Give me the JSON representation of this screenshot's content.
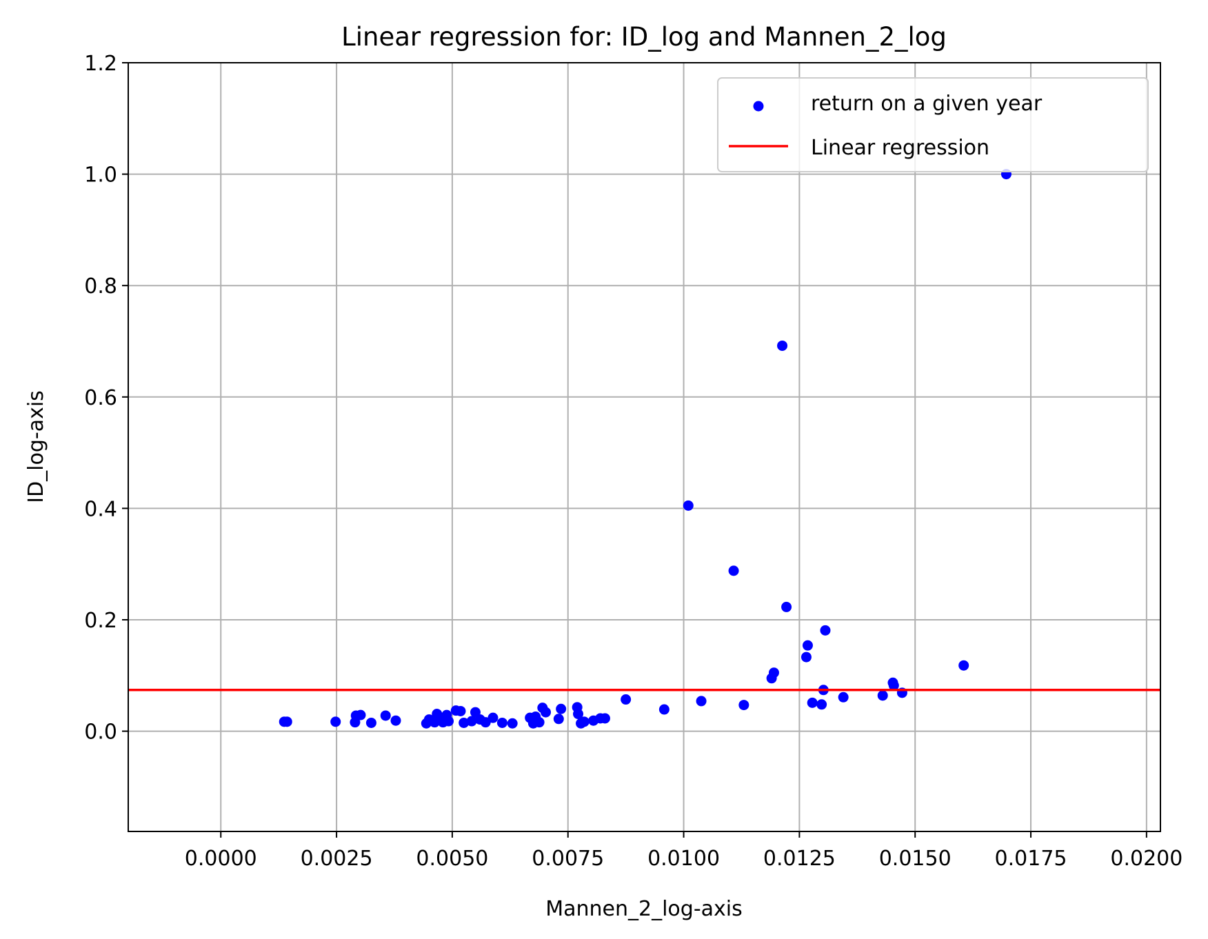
{
  "chart_data": {
    "type": "scatter",
    "title": "Linear regression for: ID_log and Mannen_2_log",
    "xlabel": "Mannen_2_log-axis",
    "ylabel": "ID_log-axis",
    "xlim": [
      -0.002,
      0.0203
    ],
    "ylim": [
      -0.18,
      1.2
    ],
    "x_ticks": [
      "0.0000",
      "0.0025",
      "0.0050",
      "0.0075",
      "0.0100",
      "0.0125",
      "0.0150",
      "0.0175",
      "0.0200"
    ],
    "x_tick_values": [
      0.0,
      0.0025,
      0.005,
      0.0075,
      0.01,
      0.0125,
      0.015,
      0.0175,
      0.02
    ],
    "y_ticks": [
      "0.0",
      "0.2",
      "0.4",
      "0.6",
      "0.8",
      "1.0",
      "1.2"
    ],
    "y_tick_values": [
      0.0,
      0.2,
      0.4,
      0.6,
      0.8,
      1.0,
      1.2
    ],
    "grid": true,
    "legend_position": "top-right",
    "colors": {
      "points": "#0000ff",
      "regression": "#ff0000",
      "grid": "#b0b0b0"
    },
    "series": [
      {
        "name": "return on a given year",
        "kind": "scatter",
        "points": [
          [
            0.00137,
            0.017
          ],
          [
            0.00143,
            0.017
          ],
          [
            0.00248,
            0.017
          ],
          [
            0.0029,
            0.016
          ],
          [
            0.00292,
            0.028
          ],
          [
            0.00302,
            0.029
          ],
          [
            0.00325,
            0.015
          ],
          [
            0.00356,
            0.028
          ],
          [
            0.00378,
            0.019
          ],
          [
            0.00444,
            0.014
          ],
          [
            0.0045,
            0.021
          ],
          [
            0.00462,
            0.016
          ],
          [
            0.00467,
            0.031
          ],
          [
            0.00475,
            0.02
          ],
          [
            0.0048,
            0.016
          ],
          [
            0.00488,
            0.029
          ],
          [
            0.00492,
            0.018
          ],
          [
            0.00508,
            0.037
          ],
          [
            0.00518,
            0.036
          ],
          [
            0.00525,
            0.015
          ],
          [
            0.00542,
            0.018
          ],
          [
            0.0055,
            0.034
          ],
          [
            0.0056,
            0.021
          ],
          [
            0.00572,
            0.016
          ],
          [
            0.00588,
            0.024
          ],
          [
            0.00608,
            0.015
          ],
          [
            0.0063,
            0.014
          ],
          [
            0.00668,
            0.024
          ],
          [
            0.00675,
            0.014
          ],
          [
            0.0068,
            0.026
          ],
          [
            0.00688,
            0.016
          ],
          [
            0.00695,
            0.042
          ],
          [
            0.00702,
            0.034
          ],
          [
            0.0073,
            0.022
          ],
          [
            0.00735,
            0.04
          ],
          [
            0.0077,
            0.043
          ],
          [
            0.00772,
            0.031
          ],
          [
            0.00778,
            0.014
          ],
          [
            0.00785,
            0.017
          ],
          [
            0.00805,
            0.019
          ],
          [
            0.0082,
            0.023
          ],
          [
            0.0083,
            0.023
          ],
          [
            0.00875,
            0.057
          ],
          [
            0.00958,
            0.039
          ],
          [
            0.0101,
            0.405
          ],
          [
            0.01038,
            0.054
          ],
          [
            0.01108,
            0.288
          ],
          [
            0.0113,
            0.047
          ],
          [
            0.0119,
            0.095
          ],
          [
            0.01195,
            0.105
          ],
          [
            0.01213,
            0.692
          ],
          [
            0.01222,
            0.223
          ],
          [
            0.01265,
            0.133
          ],
          [
            0.01268,
            0.154
          ],
          [
            0.01278,
            0.051
          ],
          [
            0.01298,
            0.048
          ],
          [
            0.01302,
            0.074
          ],
          [
            0.01306,
            0.181
          ],
          [
            0.01345,
            0.061
          ],
          [
            0.0143,
            0.064
          ],
          [
            0.01452,
            0.087
          ],
          [
            0.01454,
            0.082
          ],
          [
            0.01472,
            0.069
          ],
          [
            0.01605,
            0.118
          ],
          [
            0.01697,
            1.0
          ]
        ]
      },
      {
        "name": "Linear regression",
        "kind": "line",
        "points": [
          [
            -0.002,
            0.074
          ],
          [
            0.0203,
            0.074
          ]
        ]
      }
    ]
  }
}
